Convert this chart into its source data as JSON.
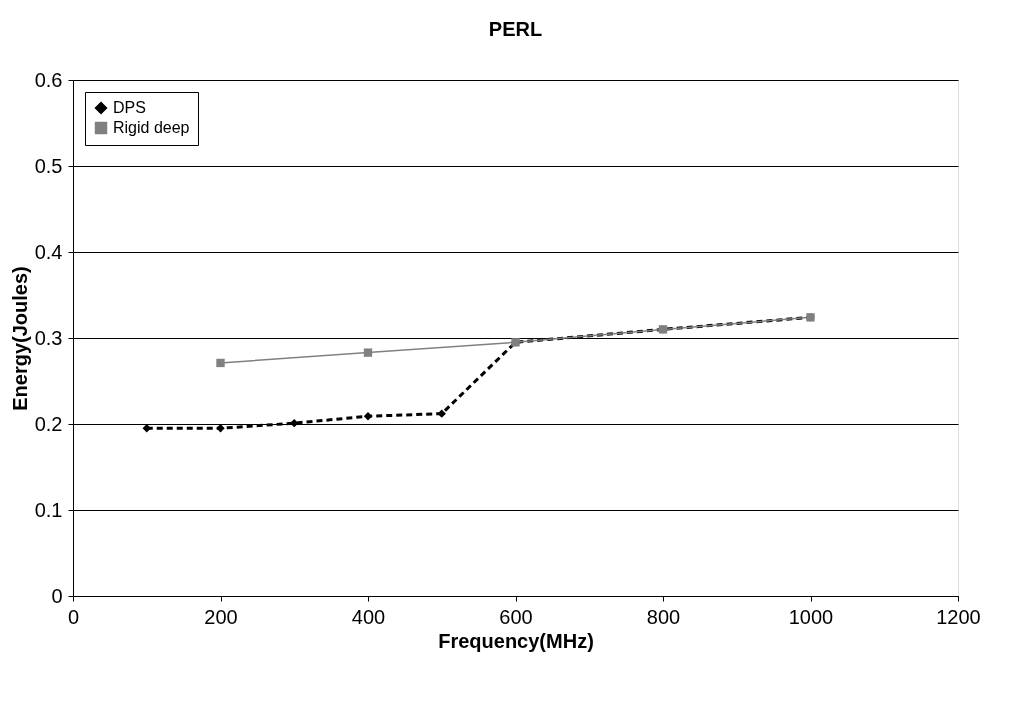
{
  "chart_data": {
    "type": "line",
    "title": "PERL",
    "xlabel": "Frequency(MHz)",
    "ylabel": "Energy(Joules)",
    "xlim": [
      0,
      1200
    ],
    "xticks": [
      0,
      200,
      400,
      600,
      800,
      1000,
      1200
    ],
    "ylim": [
      0,
      0.6
    ],
    "yticks": [
      0,
      0.1,
      0.2,
      0.3,
      0.4,
      0.5,
      0.6
    ],
    "grid": "y",
    "legend": "top left",
    "series": [
      {
        "name": "DPS",
        "color": "#000000",
        "marker": "diamond",
        "line_style": "dashed",
        "x": [
          100,
          200,
          300,
          400,
          500,
          600,
          800,
          1000
        ],
        "values": [
          0.195,
          0.195,
          0.201,
          0.209,
          0.212,
          0.295,
          0.31,
          0.324
        ]
      },
      {
        "name": "Rigid deep",
        "color": "#808080",
        "marker": "square",
        "line_style": "solid",
        "x": [
          200,
          400,
          600,
          800,
          1000
        ],
        "values": [
          0.271,
          0.283,
          0.295,
          0.31,
          0.324
        ]
      }
    ]
  }
}
